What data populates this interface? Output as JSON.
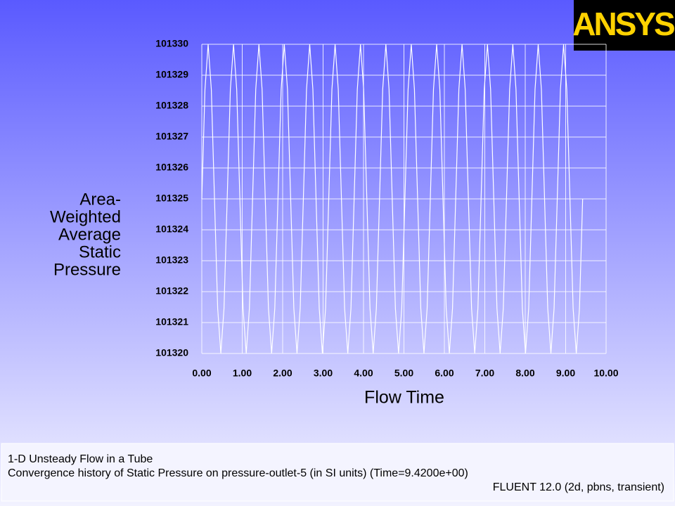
{
  "chart_data": {
    "type": "line",
    "logo": "ANSYS",
    "xlabel": "Flow Time",
    "ylabel_lines": [
      "Area-",
      "Weighted",
      "Average",
      "Static",
      "Pressure"
    ],
    "footer": [
      "1-D Unsteady Flow in a Tube",
      "Convergence history of Static Pressure on pressure-outlet-5 (in SI units)  (Time=9.4200e+00)",
      "FLUENT 12.0 (2d, pbns, transient)"
    ],
    "grid": true,
    "color": "#ffffff",
    "xlim": [
      0,
      10
    ],
    "ylim": [
      101320,
      101330
    ],
    "xticks": [
      {
        "value": 0,
        "label": "0.00"
      },
      {
        "value": 1,
        "label": "1.00"
      },
      {
        "value": 2,
        "label": "2.00"
      },
      {
        "value": 3,
        "label": "3.00"
      },
      {
        "value": 4,
        "label": "4.00"
      },
      {
        "value": 5,
        "label": "5.00"
      },
      {
        "value": 6,
        "label": "6.00"
      },
      {
        "value": 7,
        "label": "7.00"
      },
      {
        "value": 8,
        "label": "8.00"
      },
      {
        "value": 9,
        "label": "9.00"
      },
      {
        "value": 10,
        "label": "10.00"
      }
    ],
    "yticks": [
      101320,
      101321,
      101322,
      101323,
      101324,
      101325,
      101326,
      101327,
      101328,
      101329,
      101330
    ],
    "x": [
      0,
      0.0785,
      0.157,
      0.2355,
      0.314,
      0.3925,
      0.471,
      0.5495,
      0.628,
      0.7065,
      0.785,
      0.8635,
      0.942,
      1.0205,
      1.099,
      1.1775,
      1.256,
      1.3345,
      1.413,
      1.4915,
      1.57,
      1.6485,
      1.727,
      1.8055,
      1.884,
      1.9625,
      2.041,
      2.1195,
      2.198,
      2.2765,
      2.355,
      2.4335,
      2.512,
      2.5905,
      2.669,
      2.7475,
      2.826,
      2.9045,
      2.983,
      3.0615,
      3.14,
      3.2185,
      3.297,
      3.3755,
      3.454,
      3.5325,
      3.611,
      3.6895,
      3.768,
      3.8465,
      3.925,
      4.0035,
      4.082,
      4.1605,
      4.239,
      4.3175,
      4.396,
      4.4745,
      4.553,
      4.6315,
      4.71,
      4.7885,
      4.867,
      4.9455,
      5.024,
      5.1025,
      5.181,
      5.2595,
      5.338,
      5.4165,
      5.495,
      5.5735,
      5.652,
      5.7305,
      5.809,
      5.8875,
      5.966,
      6.0445,
      6.123,
      6.2015,
      6.28,
      6.3585,
      6.437,
      6.5155,
      6.594,
      6.6725,
      6.751,
      6.8295,
      6.908,
      6.9865,
      7.065,
      7.1435,
      7.222,
      7.3005,
      7.379,
      7.4575,
      7.536,
      7.6145,
      7.693,
      7.7715,
      7.85,
      7.9285,
      8.007,
      8.0855,
      8.164,
      8.2425,
      8.321,
      8.3995,
      8.478,
      8.5565,
      8.635,
      8.7135,
      8.792,
      8.8705,
      8.949,
      9.0275,
      9.106,
      9.1845,
      9.263,
      9.3415,
      9.42
    ],
    "values": [
      101325,
      101328.54,
      101330,
      101328.54,
      101325,
      101321.46,
      101320,
      101321.46,
      101325,
      101328.54,
      101330,
      101328.54,
      101325,
      101321.46,
      101320,
      101321.46,
      101325,
      101328.54,
      101330,
      101328.54,
      101325,
      101321.46,
      101320,
      101321.46,
      101325,
      101328.54,
      101330,
      101328.54,
      101325,
      101321.46,
      101320,
      101321.46,
      101325,
      101328.54,
      101330,
      101328.54,
      101325,
      101321.46,
      101320,
      101321.46,
      101325,
      101328.54,
      101330,
      101328.54,
      101325,
      101321.46,
      101320,
      101321.46,
      101325,
      101328.54,
      101330,
      101328.54,
      101325,
      101321.46,
      101320,
      101321.46,
      101325,
      101328.54,
      101330,
      101328.54,
      101325,
      101321.46,
      101320,
      101321.46,
      101325,
      101328.54,
      101330,
      101328.54,
      101325,
      101321.46,
      101320,
      101321.46,
      101325,
      101328.54,
      101330,
      101328.54,
      101325,
      101321.46,
      101320,
      101321.46,
      101325,
      101328.54,
      101330,
      101328.54,
      101325,
      101321.46,
      101320,
      101321.46,
      101325,
      101328.54,
      101330,
      101328.54,
      101325,
      101321.46,
      101320,
      101321.46,
      101325,
      101328.54,
      101330,
      101328.54,
      101325,
      101321.46,
      101320,
      101321.46,
      101325,
      101328.54,
      101330,
      101328.54,
      101325,
      101321.46,
      101320,
      101321.46,
      101325,
      101328.54,
      101330,
      101328.54,
      101325,
      101321.46,
      101320,
      101321.46,
      101325
    ]
  }
}
